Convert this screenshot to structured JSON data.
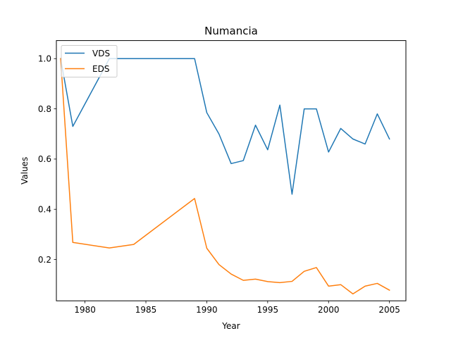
{
  "chart_data": {
    "type": "line",
    "title": "Numancia",
    "xlabel": "Year",
    "ylabel": "Values",
    "xlim": [
      1977.65,
      2006.35
    ],
    "ylim": [
      0.0355,
      1.072
    ],
    "xticks": [
      1980,
      1985,
      1990,
      1995,
      2000,
      2005
    ],
    "yticks": [
      0.2,
      0.4,
      0.6,
      0.8,
      1.0
    ],
    "xtick_labels": [
      "1980",
      "1985",
      "1990",
      "1995",
      "2000",
      "2005"
    ],
    "ytick_labels": [
      "0.2",
      "0.4",
      "0.6",
      "0.8",
      "1.0"
    ],
    "legend_position": "top-left",
    "grid": false,
    "series": [
      {
        "name": "VDS",
        "color": "#1f77b4",
        "x": [
          1978,
          1979,
          1982,
          1983,
          1984,
          1985,
          1986,
          1987,
          1988,
          1989,
          1990,
          1991,
          1992,
          1993,
          1994,
          1995,
          1996,
          1997,
          1998,
          1999,
          2000,
          2001,
          2002,
          2003,
          2004,
          2005
        ],
        "y": [
          1.0,
          0.73,
          1.0,
          1.0,
          1.0,
          1.0,
          1.0,
          1.0,
          1.0,
          1.0,
          0.785,
          0.7,
          0.582,
          0.594,
          0.735,
          0.637,
          0.815,
          0.46,
          0.8,
          0.8,
          0.628,
          0.722,
          0.68,
          0.66,
          0.78,
          0.68
        ]
      },
      {
        "name": "EDS",
        "color": "#ff7f0e",
        "x": [
          1978,
          1979,
          1982,
          1984,
          1989,
          1990,
          1991,
          1992,
          1993,
          1994,
          1995,
          1996,
          1997,
          1998,
          1999,
          2000,
          2001,
          2002,
          2003,
          2004,
          2005
        ],
        "y": [
          1.0,
          0.268,
          0.246,
          0.26,
          0.443,
          0.245,
          0.18,
          0.142,
          0.117,
          0.122,
          0.112,
          0.108,
          0.113,
          0.153,
          0.168,
          0.094,
          0.1,
          0.063,
          0.094,
          0.105,
          0.078
        ]
      }
    ]
  }
}
